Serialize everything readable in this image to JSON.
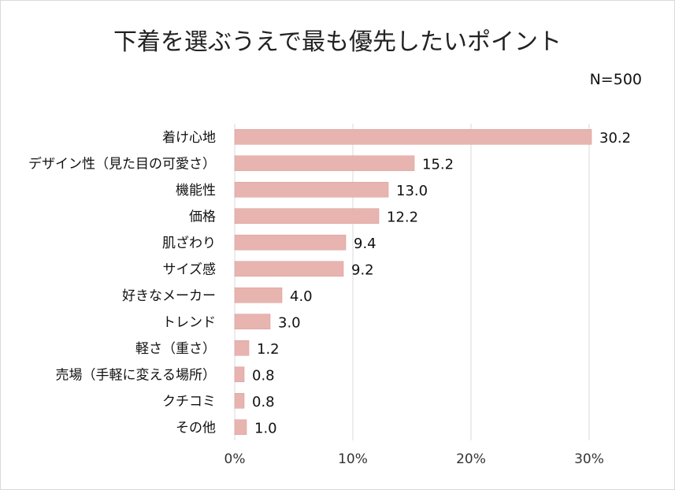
{
  "chart_data": {
    "type": "bar",
    "orientation": "horizontal",
    "title": "下着を選ぶうえで最も優先したいポイント",
    "note": "N=500",
    "categories": [
      "着け心地",
      "デザイン性（見た目の可愛さ）",
      "機能性",
      "価格",
      "肌ざわり",
      "サイズ感",
      "好きなメーカー",
      "トレンド",
      "軽さ（重さ）",
      "売場（手軽に変える場所）",
      "クチコミ",
      "その他"
    ],
    "values": [
      30.2,
      15.2,
      13.0,
      12.2,
      9.4,
      9.2,
      4.0,
      3.0,
      1.2,
      0.8,
      0.8,
      1.0
    ],
    "value_labels": [
      "30.2",
      "15.2",
      "13.0",
      "12.2",
      "9.4",
      "9.2",
      "4.0",
      "3.0",
      "1.2",
      "0.8",
      "0.8",
      "1.0"
    ],
    "xticks": [
      0,
      10,
      20,
      30
    ],
    "xtick_labels": [
      "0%",
      "10%",
      "20%",
      "30%"
    ],
    "xlim": [
      0,
      30
    ],
    "grid": true,
    "bar_color": "#e8b4b0",
    "bar_border_color": "#d9a09b",
    "grid_color": "#d9d9d9"
  }
}
